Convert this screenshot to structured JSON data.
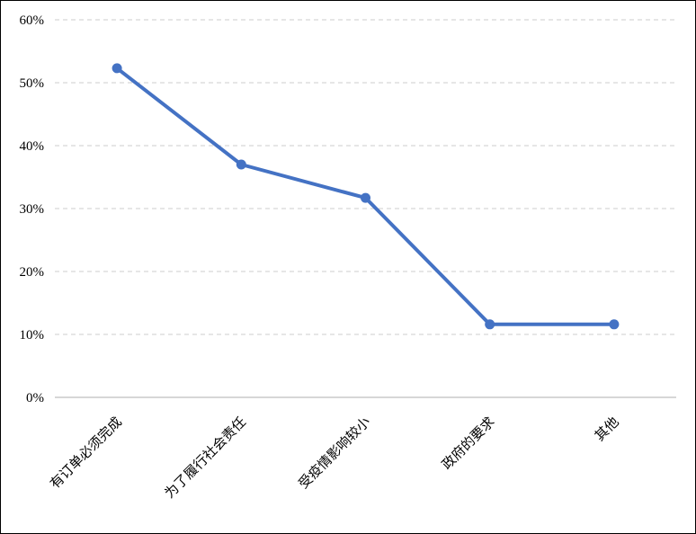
{
  "chart_data": {
    "type": "line",
    "title": "",
    "xlabel": "",
    "ylabel": "",
    "categories": [
      "有订单必须完成",
      "为了履行社会责任",
      "受疫情影响较小",
      "政府的要求",
      "其他"
    ],
    "series": [
      {
        "values": [
          52.3,
          37.0,
          31.7,
          11.6,
          11.6
        ]
      }
    ],
    "ylim": [
      0,
      60
    ],
    "yticks": [
      0,
      10,
      20,
      30,
      40,
      50,
      60
    ],
    "ytick_labels": [
      "0%",
      "10%",
      "20%",
      "30%",
      "40%",
      "50%",
      "60%"
    ],
    "grid": true,
    "legend": "none",
    "line_color": "#4472C4",
    "grid_color": "#CCCCCC",
    "axis_color": "#BFBFBF"
  }
}
